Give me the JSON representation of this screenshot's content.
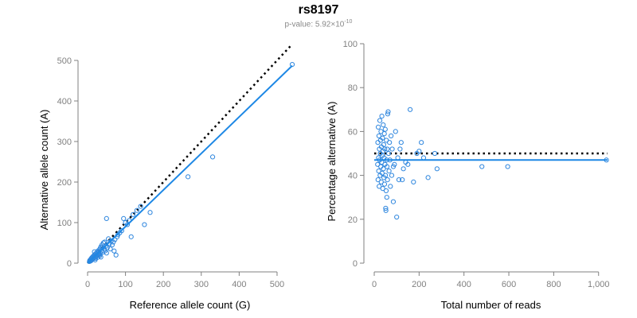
{
  "header": {
    "title": "rs8197",
    "subtitle_prefix": "p-value: 5.92×10",
    "subtitle_exponent": "-10"
  },
  "colors": {
    "points": "#2E86DE",
    "fit_line": "#1E88E5",
    "reference_line": "#000000",
    "axis": "#808080"
  },
  "chart_data": [
    {
      "type": "scatter",
      "title": "",
      "xlabel": "Reference allele count (G)",
      "ylabel": "Alternative allele count (A)",
      "xlim": [
        0,
        540
      ],
      "ylim": [
        0,
        500
      ],
      "xticks": [
        0,
        100,
        200,
        300,
        400,
        500
      ],
      "yticks": [
        0,
        100,
        200,
        300,
        400,
        500
      ],
      "xtick_labels": [
        "0",
        "100",
        "200",
        "300",
        "400",
        "500"
      ],
      "ytick_labels": [
        "0",
        "100",
        "200",
        "300",
        "400",
        "500"
      ],
      "reference_line": {
        "style": "dotted",
        "from": [
          0,
          0
        ],
        "to": [
          540,
          540
        ]
      },
      "fit_line": {
        "from": [
          0,
          0
        ],
        "to": [
          540,
          487
        ]
      },
      "points": [
        [
          5,
          4
        ],
        [
          6,
          7
        ],
        [
          7,
          5
        ],
        [
          8,
          9
        ],
        [
          9,
          6
        ],
        [
          10,
          12
        ],
        [
          11,
          8
        ],
        [
          12,
          14
        ],
        [
          13,
          10
        ],
        [
          14,
          16
        ],
        [
          15,
          11
        ],
        [
          16,
          18
        ],
        [
          17,
          13
        ],
        [
          18,
          20
        ],
        [
          19,
          15
        ],
        [
          20,
          22
        ],
        [
          21,
          12
        ],
        [
          22,
          24
        ],
        [
          23,
          17
        ],
        [
          24,
          19
        ],
        [
          25,
          26
        ],
        [
          26,
          14
        ],
        [
          27,
          30
        ],
        [
          28,
          21
        ],
        [
          29,
          25
        ],
        [
          30,
          28
        ],
        [
          31,
          33
        ],
        [
          32,
          18
        ],
        [
          33,
          36
        ],
        [
          34,
          24
        ],
        [
          35,
          40
        ],
        [
          36,
          30
        ],
        [
          38,
          45
        ],
        [
          40,
          27
        ],
        [
          42,
          50
        ],
        [
          44,
          35
        ],
        [
          46,
          30
        ],
        [
          48,
          42
        ],
        [
          50,
          25
        ],
        [
          52,
          38
        ],
        [
          55,
          60
        ],
        [
          58,
          48
        ],
        [
          60,
          35
        ],
        [
          62,
          55
        ],
        [
          65,
          45
        ],
        [
          68,
          52
        ],
        [
          70,
          30
        ],
        [
          72,
          58
        ],
        [
          75,
          20
        ],
        [
          78,
          65
        ],
        [
          80,
          70
        ],
        [
          85,
          75
        ],
        [
          90,
          80
        ],
        [
          95,
          110
        ],
        [
          100,
          100
        ],
        [
          105,
          95
        ],
        [
          110,
          105
        ],
        [
          115,
          65
        ],
        [
          120,
          120
        ],
        [
          130,
          130
        ],
        [
          140,
          140
        ],
        [
          150,
          95
        ],
        [
          165,
          125
        ],
        [
          50,
          110
        ],
        [
          40,
          40
        ],
        [
          30,
          20
        ],
        [
          20,
          8
        ],
        [
          18,
          28
        ],
        [
          45,
          52
        ],
        [
          35,
          15
        ],
        [
          265,
          213
        ],
        [
          330,
          262
        ],
        [
          540,
          490
        ]
      ]
    },
    {
      "type": "scatter",
      "title": "",
      "xlabel": "Total number of reads",
      "ylabel": "Percentage alternative (A)",
      "xlim": [
        0,
        1040
      ],
      "ylim": [
        0,
        100
      ],
      "xticks": [
        0,
        200,
        400,
        600,
        800,
        1000
      ],
      "yticks": [
        0,
        20,
        40,
        60,
        80,
        100
      ],
      "xtick_labels": [
        "0",
        "200",
        "400",
        "600",
        "800",
        "1,000"
      ],
      "ytick_labels": [
        "0",
        "20",
        "40",
        "60",
        "80",
        "100"
      ],
      "reference_line": {
        "style": "dotted",
        "from": [
          0,
          50
        ],
        "to": [
          1040,
          50
        ]
      },
      "fit_line": {
        "from": [
          0,
          47
        ],
        "to": [
          1040,
          47
        ]
      },
      "points": [
        [
          15,
          45
        ],
        [
          16,
          55
        ],
        [
          17,
          38
        ],
        [
          18,
          62
        ],
        [
          19,
          48
        ],
        [
          20,
          42
        ],
        [
          21,
          58
        ],
        [
          22,
          35
        ],
        [
          23,
          52
        ],
        [
          24,
          47
        ],
        [
          25,
          65
        ],
        [
          26,
          40
        ],
        [
          27,
          50
        ],
        [
          28,
          56
        ],
        [
          29,
          44
        ],
        [
          30,
          60
        ],
        [
          31,
          37
        ],
        [
          32,
          53
        ],
        [
          33,
          46
        ],
        [
          34,
          67
        ],
        [
          35,
          41
        ],
        [
          36,
          49
        ],
        [
          37,
          57
        ],
        [
          38,
          34
        ],
        [
          39,
          51
        ],
        [
          40,
          63
        ],
        [
          41,
          43
        ],
        [
          42,
          54
        ],
        [
          43,
          39
        ],
        [
          44,
          48
        ],
        [
          45,
          59
        ],
        [
          46,
          36
        ],
        [
          47,
          52
        ],
        [
          48,
          45
        ],
        [
          49,
          61
        ],
        [
          50,
          40
        ],
        [
          51,
          25
        ],
        [
          52,
          24
        ],
        [
          53,
          33
        ],
        [
          54,
          56
        ],
        [
          55,
          47
        ],
        [
          56,
          30
        ],
        [
          57,
          44
        ],
        [
          58,
          52
        ],
        [
          59,
          38
        ],
        [
          60,
          68
        ],
        [
          62,
          69
        ],
        [
          64,
          50
        ],
        [
          66,
          42
        ],
        [
          68,
          55
        ],
        [
          70,
          47
        ],
        [
          72,
          35
        ],
        [
          75,
          58
        ],
        [
          78,
          40
        ],
        [
          80,
          52
        ],
        [
          85,
          28
        ],
        [
          90,
          45
        ],
        [
          95,
          60
        ],
        [
          100,
          21
        ],
        [
          105,
          48
        ],
        [
          110,
          38
        ],
        [
          120,
          55
        ],
        [
          130,
          43
        ],
        [
          140,
          46
        ],
        [
          150,
          45
        ],
        [
          160,
          70
        ],
        [
          175,
          37
        ],
        [
          190,
          50
        ],
        [
          200,
          51
        ],
        [
          210,
          55
        ],
        [
          220,
          48
        ],
        [
          240,
          39
        ],
        [
          280,
          43
        ],
        [
          270,
          50
        ],
        [
          480,
          44
        ],
        [
          595,
          44
        ],
        [
          1035,
          47
        ],
        [
          125,
          38
        ],
        [
          115,
          52
        ],
        [
          85,
          44
        ]
      ]
    }
  ]
}
